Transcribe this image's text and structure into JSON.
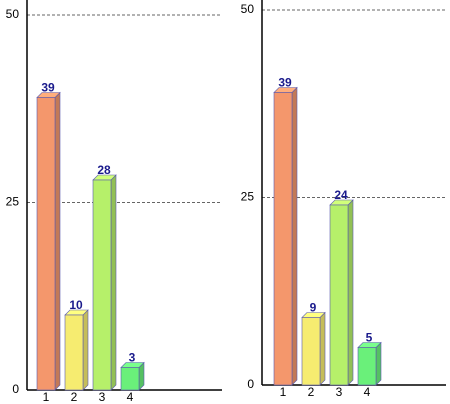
{
  "chart_data": [
    {
      "type": "bar3d",
      "categories": [
        "1",
        "2",
        "3",
        "4"
      ],
      "values": [
        39,
        10,
        28,
        3
      ],
      "colors": [
        "#f4976c",
        "#f6ec70",
        "#b6f06a",
        "#6af07a"
      ],
      "ylim": [
        0,
        50
      ],
      "yticks": [
        0,
        25,
        50
      ],
      "grid": true
    },
    {
      "type": "bar3d",
      "categories": [
        "1",
        "2",
        "3",
        "4"
      ],
      "values": [
        39,
        9,
        24,
        5
      ],
      "colors": [
        "#f4976c",
        "#f6ec70",
        "#b6f06a",
        "#6af07a"
      ],
      "ylim": [
        0,
        50
      ],
      "yticks": [
        0,
        25,
        50
      ],
      "grid": true
    }
  ]
}
